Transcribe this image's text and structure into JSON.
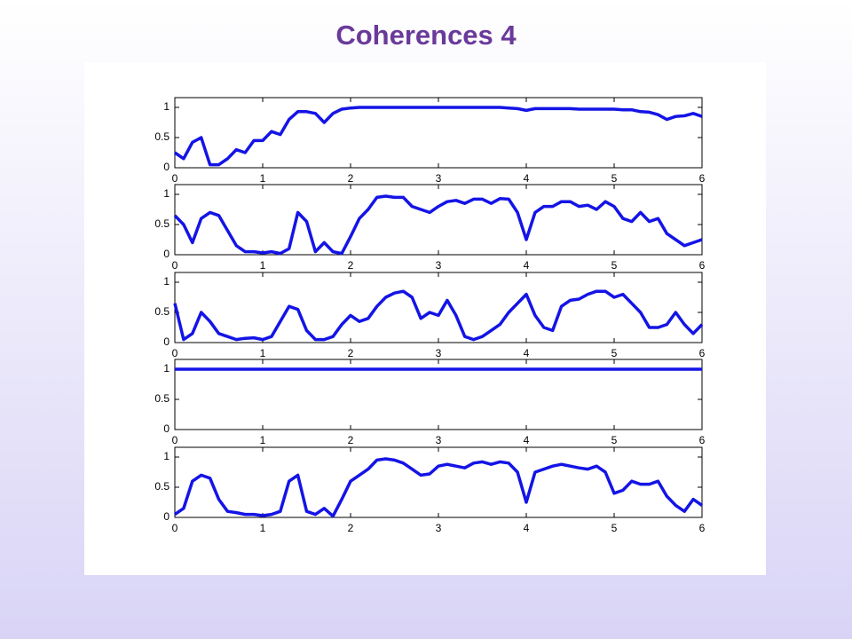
{
  "title": "Coherences 4",
  "chart_data": [
    {
      "type": "line",
      "color": "#1414e6",
      "xlim": [
        0,
        6
      ],
      "ylim": [
        0,
        1
      ],
      "xticks": [
        0,
        1,
        2,
        3,
        4,
        5,
        6
      ],
      "yticks": [
        0,
        0.5,
        1
      ],
      "x": [
        0,
        0.1,
        0.2,
        0.3,
        0.4,
        0.5,
        0.6,
        0.7,
        0.8,
        0.9,
        1,
        1.1,
        1.2,
        1.3,
        1.4,
        1.5,
        1.6,
        1.7,
        1.8,
        1.9,
        2,
        2.1,
        2.2,
        2.3,
        2.4,
        2.5,
        2.6,
        2.7,
        2.8,
        2.9,
        3,
        3.1,
        3.2,
        3.3,
        3.4,
        3.5,
        3.6,
        3.7,
        3.8,
        3.9,
        4,
        4.1,
        4.2,
        4.3,
        4.4,
        4.5,
        4.6,
        4.7,
        4.8,
        4.9,
        5,
        5.1,
        5.2,
        5.3,
        5.4,
        5.5,
        5.6,
        5.7,
        5.8,
        5.9,
        6
      ],
      "values": [
        0.25,
        0.15,
        0.42,
        0.5,
        0.05,
        0.05,
        0.15,
        0.3,
        0.25,
        0.45,
        0.45,
        0.6,
        0.55,
        0.8,
        0.93,
        0.93,
        0.9,
        0.75,
        0.9,
        0.97,
        0.99,
        1,
        1,
        1,
        1,
        1,
        1,
        1,
        1,
        1,
        1,
        1,
        1,
        1,
        1,
        1,
        1,
        1,
        0.99,
        0.98,
        0.95,
        0.98,
        0.98,
        0.98,
        0.98,
        0.98,
        0.97,
        0.97,
        0.97,
        0.97,
        0.97,
        0.96,
        0.96,
        0.93,
        0.92,
        0.88,
        0.8,
        0.85,
        0.86,
        0.9,
        0.85
      ]
    },
    {
      "type": "line",
      "color": "#1414e6",
      "xlim": [
        0,
        6
      ],
      "ylim": [
        0,
        1
      ],
      "xticks": [
        0,
        1,
        2,
        3,
        4,
        5,
        6
      ],
      "yticks": [
        0,
        0.5,
        1
      ],
      "x": [
        0,
        0.1,
        0.2,
        0.3,
        0.4,
        0.5,
        0.6,
        0.7,
        0.8,
        0.9,
        1,
        1.1,
        1.2,
        1.3,
        1.4,
        1.5,
        1.6,
        1.7,
        1.8,
        1.9,
        2,
        2.1,
        2.2,
        2.3,
        2.4,
        2.5,
        2.6,
        2.7,
        2.8,
        2.9,
        3,
        3.1,
        3.2,
        3.3,
        3.4,
        3.5,
        3.6,
        3.7,
        3.8,
        3.9,
        4,
        4.1,
        4.2,
        4.3,
        4.4,
        4.5,
        4.6,
        4.7,
        4.8,
        4.9,
        5,
        5.1,
        5.2,
        5.3,
        5.4,
        5.5,
        5.6,
        5.7,
        5.8,
        5.9,
        6
      ],
      "values": [
        0.65,
        0.5,
        0.2,
        0.6,
        0.7,
        0.65,
        0.4,
        0.15,
        0.05,
        0.05,
        0.03,
        0.05,
        0.02,
        0.1,
        0.7,
        0.55,
        0.05,
        0.2,
        0.05,
        0.02,
        0.3,
        0.6,
        0.75,
        0.95,
        0.97,
        0.95,
        0.95,
        0.8,
        0.75,
        0.7,
        0.8,
        0.88,
        0.9,
        0.85,
        0.92,
        0.92,
        0.85,
        0.93,
        0.92,
        0.7,
        0.25,
        0.7,
        0.8,
        0.8,
        0.88,
        0.88,
        0.8,
        0.82,
        0.75,
        0.88,
        0.8,
        0.6,
        0.55,
        0.7,
        0.55,
        0.6,
        0.35,
        0.25,
        0.15,
        0.2,
        0.25
      ]
    },
    {
      "type": "line",
      "color": "#1414e6",
      "xlim": [
        0,
        6
      ],
      "ylim": [
        0,
        1
      ],
      "xticks": [
        0,
        1,
        2,
        3,
        4,
        5,
        6
      ],
      "yticks": [
        0,
        0.5,
        1
      ],
      "x": [
        0,
        0.1,
        0.2,
        0.3,
        0.4,
        0.5,
        0.6,
        0.7,
        0.8,
        0.9,
        1,
        1.1,
        1.2,
        1.3,
        1.4,
        1.5,
        1.6,
        1.7,
        1.8,
        1.9,
        2,
        2.1,
        2.2,
        2.3,
        2.4,
        2.5,
        2.6,
        2.7,
        2.8,
        2.9,
        3,
        3.1,
        3.2,
        3.3,
        3.4,
        3.5,
        3.6,
        3.7,
        3.8,
        3.9,
        4,
        4.1,
        4.2,
        4.3,
        4.4,
        4.5,
        4.6,
        4.7,
        4.8,
        4.9,
        5,
        5.1,
        5.2,
        5.3,
        5.4,
        5.5,
        5.6,
        5.7,
        5.8,
        5.9,
        6
      ],
      "values": [
        0.65,
        0.05,
        0.15,
        0.5,
        0.35,
        0.15,
        0.1,
        0.05,
        0.07,
        0.08,
        0.05,
        0.1,
        0.35,
        0.6,
        0.55,
        0.2,
        0.05,
        0.05,
        0.1,
        0.3,
        0.45,
        0.35,
        0.4,
        0.6,
        0.75,
        0.82,
        0.85,
        0.75,
        0.4,
        0.5,
        0.45,
        0.7,
        0.45,
        0.1,
        0.05,
        0.1,
        0.2,
        0.3,
        0.5,
        0.65,
        0.8,
        0.45,
        0.25,
        0.2,
        0.6,
        0.7,
        0.72,
        0.8,
        0.85,
        0.85,
        0.75,
        0.8,
        0.65,
        0.5,
        0.25,
        0.25,
        0.3,
        0.5,
        0.3,
        0.15,
        0.3
      ]
    },
    {
      "type": "line",
      "color": "#1414e6",
      "xlim": [
        0,
        6
      ],
      "ylim": [
        0,
        1
      ],
      "xticks": [
        0,
        1,
        2,
        3,
        4,
        5,
        6
      ],
      "yticks": [
        0,
        0.5,
        1
      ],
      "x": [
        0,
        0.1,
        0.2,
        0.3,
        0.4,
        0.5,
        0.6,
        0.7,
        0.8,
        0.9,
        1,
        1.1,
        1.2,
        1.3,
        1.4,
        1.5,
        1.6,
        1.7,
        1.8,
        1.9,
        2,
        2.1,
        2.2,
        2.3,
        2.4,
        2.5,
        2.6,
        2.7,
        2.8,
        2.9,
        3,
        3.1,
        3.2,
        3.3,
        3.4,
        3.5,
        3.6,
        3.7,
        3.8,
        3.9,
        4,
        4.1,
        4.2,
        4.3,
        4.4,
        4.5,
        4.6,
        4.7,
        4.8,
        4.9,
        5,
        5.1,
        5.2,
        5.3,
        5.4,
        5.5,
        5.6,
        5.7,
        5.8,
        5.9,
        6
      ],
      "values": [
        1,
        1,
        1,
        1,
        1,
        1,
        1,
        1,
        1,
        1,
        1,
        1,
        1,
        1,
        1,
        1,
        1,
        1,
        1,
        1,
        1,
        1,
        1,
        1,
        1,
        1,
        1,
        1,
        1,
        1,
        1,
        1,
        1,
        1,
        1,
        1,
        1,
        1,
        1,
        1,
        1,
        1,
        1,
        1,
        1,
        1,
        1,
        1,
        1,
        1,
        1,
        1,
        1,
        1,
        1,
        1,
        1,
        1,
        1,
        1,
        1
      ]
    },
    {
      "type": "line",
      "color": "#1414e6",
      "xlim": [
        0,
        6
      ],
      "ylim": [
        0,
        1
      ],
      "xticks": [
        0,
        1,
        2,
        3,
        4,
        5,
        6
      ],
      "yticks": [
        0,
        0.5,
        1
      ],
      "x": [
        0,
        0.1,
        0.2,
        0.3,
        0.4,
        0.5,
        0.6,
        0.7,
        0.8,
        0.9,
        1,
        1.1,
        1.2,
        1.3,
        1.4,
        1.5,
        1.6,
        1.7,
        1.8,
        1.9,
        2,
        2.1,
        2.2,
        2.3,
        2.4,
        2.5,
        2.6,
        2.7,
        2.8,
        2.9,
        3,
        3.1,
        3.2,
        3.3,
        3.4,
        3.5,
        3.6,
        3.7,
        3.8,
        3.9,
        4,
        4.1,
        4.2,
        4.3,
        4.4,
        4.5,
        4.6,
        4.7,
        4.8,
        4.9,
        5,
        5.1,
        5.2,
        5.3,
        5.4,
        5.5,
        5.6,
        5.7,
        5.8,
        5.9,
        6
      ],
      "values": [
        0.05,
        0.15,
        0.6,
        0.7,
        0.65,
        0.3,
        0.1,
        0.08,
        0.05,
        0.05,
        0.03,
        0.05,
        0.1,
        0.6,
        0.7,
        0.1,
        0.05,
        0.15,
        0.02,
        0.3,
        0.6,
        0.7,
        0.8,
        0.95,
        0.97,
        0.95,
        0.9,
        0.8,
        0.7,
        0.72,
        0.85,
        0.88,
        0.85,
        0.82,
        0.9,
        0.92,
        0.88,
        0.92,
        0.9,
        0.75,
        0.25,
        0.75,
        0.8,
        0.85,
        0.88,
        0.85,
        0.82,
        0.8,
        0.85,
        0.75,
        0.4,
        0.45,
        0.6,
        0.55,
        0.55,
        0.6,
        0.35,
        0.2,
        0.1,
        0.3,
        0.2
      ]
    }
  ]
}
